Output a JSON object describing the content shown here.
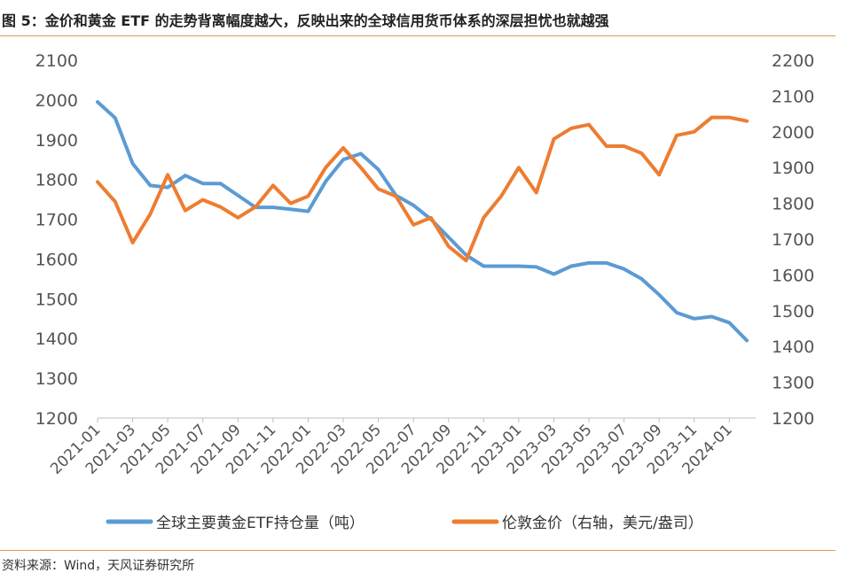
{
  "header": {
    "title": "图 5：金价和黄金 ETF 的走势背离幅度越大，反映出来的全球信用货币体系的深层担忧也就越强"
  },
  "footer": {
    "source": "资料来源：Wind，天风证券研究所"
  },
  "colors": {
    "etf": "#5b9bd5",
    "gold": "#ed7d31",
    "rule": "#e8944a"
  },
  "chart_data": {
    "type": "line",
    "title": "",
    "xlabel": "",
    "ylabel": "",
    "y_left_lim": [
      1200,
      2100
    ],
    "y_right_lim": [
      1200,
      2200
    ],
    "y_left_ticks": [
      2100,
      2000,
      1900,
      1800,
      1700,
      1600,
      1500,
      1400,
      1300,
      1200
    ],
    "y_right_ticks": [
      2200,
      2100,
      2000,
      1900,
      1800,
      1700,
      1600,
      1500,
      1400,
      1300,
      1200
    ],
    "x_ticks": [
      "2021-01",
      "2021-03",
      "2021-05",
      "2021-07",
      "2021-09",
      "2021-11",
      "2022-01",
      "2022-03",
      "2022-05",
      "2022-07",
      "2022-09",
      "2022-11",
      "2023-01",
      "2023-03",
      "2023-05",
      "2023-07",
      "2023-09",
      "2023-11",
      "2024-01"
    ],
    "grid": false,
    "legend_position": "bottom",
    "series": [
      {
        "name": "全球主要黄金ETF持仓量（吨）",
        "axis": "left",
        "x": [
          "2021-01",
          "2021-02",
          "2021-03",
          "2021-04",
          "2021-05",
          "2021-06",
          "2021-07",
          "2021-08",
          "2021-09",
          "2021-10",
          "2021-11",
          "2021-12",
          "2022-01",
          "2022-02",
          "2022-03",
          "2022-04",
          "2022-05",
          "2022-06",
          "2022-07",
          "2022-08",
          "2022-09",
          "2022-10",
          "2022-11",
          "2022-12",
          "2023-01",
          "2023-02",
          "2023-03",
          "2023-04",
          "2023-05",
          "2023-06",
          "2023-07",
          "2023-08",
          "2023-09",
          "2023-10",
          "2023-11",
          "2023-12",
          "2024-01",
          "2024-02"
        ],
        "values": [
          1995,
          1955,
          1840,
          1785,
          1780,
          1810,
          1790,
          1790,
          1760,
          1730,
          1730,
          1725,
          1720,
          1795,
          1850,
          1865,
          1825,
          1760,
          1735,
          1700,
          1655,
          1610,
          1582,
          1582,
          1582,
          1580,
          1562,
          1582,
          1590,
          1590,
          1575,
          1550,
          1510,
          1465,
          1450,
          1455,
          1440,
          1395
        ]
      },
      {
        "name": "伦敦金价（右轴，美元/盎司）",
        "axis": "right",
        "x": [
          "2021-01",
          "2021-02",
          "2021-03",
          "2021-04",
          "2021-05",
          "2021-06",
          "2021-07",
          "2021-08",
          "2021-09",
          "2021-10",
          "2021-11",
          "2021-12",
          "2022-01",
          "2022-02",
          "2022-03",
          "2022-04",
          "2022-05",
          "2022-06",
          "2022-07",
          "2022-08",
          "2022-09",
          "2022-10",
          "2022-11",
          "2022-12",
          "2023-01",
          "2023-02",
          "2023-03",
          "2023-04",
          "2023-05",
          "2023-06",
          "2023-07",
          "2023-08",
          "2023-09",
          "2023-10",
          "2023-11",
          "2023-12",
          "2024-01",
          "2024-02"
        ],
        "values": [
          1860,
          1805,
          1690,
          1770,
          1880,
          1780,
          1810,
          1790,
          1760,
          1790,
          1850,
          1800,
          1820,
          1900,
          1955,
          1900,
          1840,
          1820,
          1740,
          1760,
          1680,
          1640,
          1760,
          1820,
          1900,
          1830,
          1980,
          2010,
          2020,
          1960,
          1960,
          1940,
          1880,
          1990,
          2000,
          2040,
          2040,
          2030
        ]
      }
    ]
  }
}
